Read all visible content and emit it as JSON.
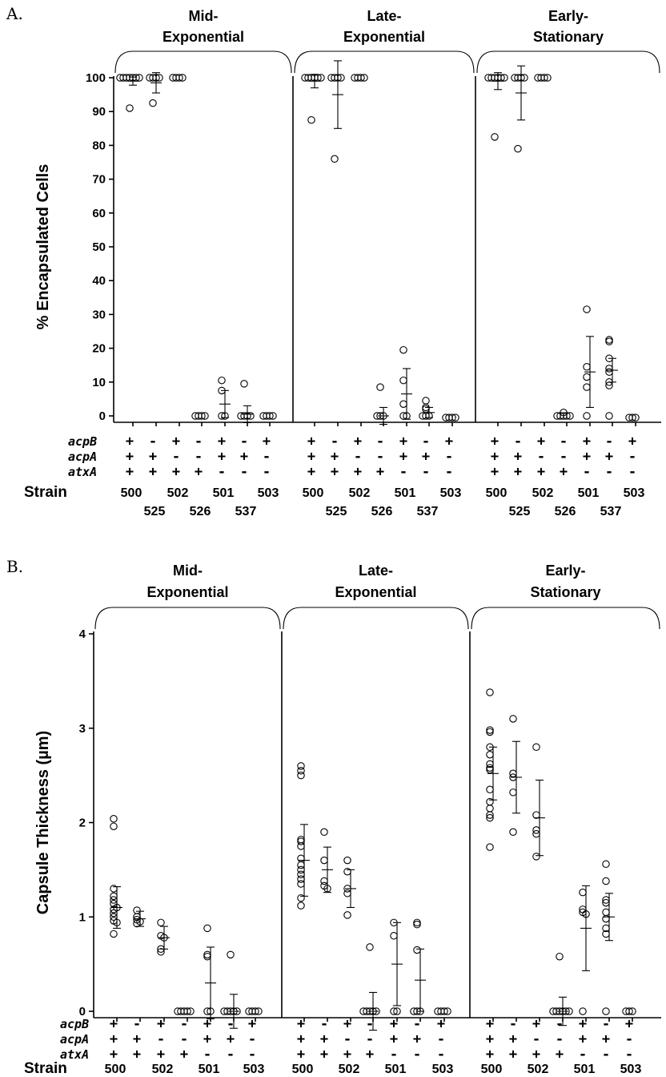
{
  "chart_data": [
    {
      "type": "scatter",
      "panel_label": "A.",
      "ylabel": "% Encapsulated Cells",
      "ylim": [
        0,
        100
      ],
      "yticks": [
        0,
        10,
        20,
        30,
        40,
        50,
        60,
        70,
        80,
        90,
        100
      ],
      "phases": [
        {
          "line1": "Mid-",
          "line2": "Exponential"
        },
        {
          "line1": "Late-",
          "line2": "Exponential"
        },
        {
          "line1": "Early-",
          "line2": "Stationary"
        }
      ],
      "genes": [
        "acpB",
        "acpA",
        "atxA"
      ],
      "strain_label": "Strain",
      "strains": [
        "500",
        "525",
        "502",
        "526",
        "501",
        "537",
        "503"
      ],
      "genotypes": {
        "acpB": [
          "+",
          "-",
          "+",
          "-",
          "+",
          "-",
          "+"
        ],
        "acpA": [
          "+",
          "+",
          "-",
          "-",
          "+",
          "+",
          "-"
        ],
        "atxA": [
          "+",
          "+",
          "+",
          "+",
          "-",
          "-",
          "-"
        ]
      },
      "series": [
        {
          "phase": "Mid-Exponential",
          "groups": [
            {
              "points": [
                100,
                100,
                100,
                100,
                100,
                100,
                100,
                91
              ],
              "mean": 99,
              "err": 1.2
            },
            {
              "points": [
                100,
                100,
                100,
                100,
                92.5
              ],
              "mean": 98.5,
              "err": 3
            },
            {
              "points": [
                100,
                100,
                100,
                100
              ],
              "mean": 100,
              "err": 0
            },
            {
              "points": [
                0,
                0,
                0,
                0
              ],
              "mean": 0,
              "err": 0
            },
            {
              "points": [
                10.5,
                7.5,
                0,
                0
              ],
              "mean": 3.5,
              "err": 4
            },
            {
              "points": [
                9.5,
                0,
                0,
                0,
                0
              ],
              "mean": 0.5,
              "err": 2.5
            },
            {
              "points": [
                0,
                0,
                0,
                0
              ],
              "mean": 0,
              "err": 0
            }
          ]
        },
        {
          "phase": "Late-Exponential",
          "groups": [
            {
              "points": [
                100,
                100,
                100,
                100,
                100,
                100,
                87.5
              ],
              "mean": 99,
              "err": 2
            },
            {
              "points": [
                100,
                100,
                100,
                100,
                76
              ],
              "mean": 95,
              "err": 10
            },
            {
              "points": [
                100,
                100,
                100,
                100
              ],
              "mean": 100,
              "err": 0
            },
            {
              "points": [
                8.5,
                0,
                0,
                0
              ],
              "mean": 0,
              "err": 2.5
            },
            {
              "points": [
                19.5,
                10.5,
                3.5,
                0,
                0
              ],
              "mean": 6.5,
              "err": 7.5
            },
            {
              "points": [
                4.5,
                2.5,
                2,
                0,
                0,
                0
              ],
              "mean": 1,
              "err": 1.5
            },
            {
              "points": [
                -0.5,
                -0.5,
                -0.5,
                -0.5
              ],
              "mean": -0.5,
              "err": 0
            }
          ]
        },
        {
          "phase": "Early-Stationary",
          "groups": [
            {
              "points": [
                100,
                100,
                100,
                100,
                100,
                100,
                82.5
              ],
              "mean": 99,
              "err": 2.5
            },
            {
              "points": [
                100,
                100,
                100,
                100,
                79
              ],
              "mean": 95.5,
              "err": 8
            },
            {
              "points": [
                100,
                100,
                100,
                100
              ],
              "mean": 100,
              "err": 0
            },
            {
              "points": [
                1,
                0,
                0,
                0,
                0,
                0
              ],
              "mean": 0,
              "err": 0
            },
            {
              "points": [
                31.5,
                14.5,
                11.5,
                8.5,
                0
              ],
              "mean": 13,
              "err": 10.5
            },
            {
              "points": [
                22.5,
                22,
                17,
                14,
                13,
                10,
                9,
                0
              ],
              "mean": 13.5,
              "err": 3.5
            },
            {
              "points": [
                -0.5,
                -0.5,
                -0.5
              ],
              "mean": -0.5,
              "err": 0
            }
          ]
        }
      ]
    },
    {
      "type": "scatter",
      "panel_label": "B.",
      "ylabel": "Capsule Thickness (µm)",
      "ylim": [
        0,
        4
      ],
      "yticks": [
        0,
        1,
        2,
        3,
        4
      ],
      "phases": [
        {
          "line1": "Mid-",
          "line2": "Exponential"
        },
        {
          "line1": "Late-",
          "line2": "Exponential"
        },
        {
          "line1": "Early-",
          "line2": "Stationary"
        }
      ],
      "genes": [
        "acpB",
        "acpA",
        "atxA"
      ],
      "strain_label": "Strain",
      "strains": [
        "500",
        "525",
        "502",
        "526",
        "501",
        "537",
        "503"
      ],
      "genotypes": {
        "acpB": [
          "+",
          "-",
          "+",
          "-",
          "+",
          "-",
          "+"
        ],
        "acpA": [
          "+",
          "+",
          "-",
          "-",
          "+",
          "+",
          "-"
        ],
        "atxA": [
          "+",
          "+",
          "+",
          "+",
          "-",
          "-",
          "-"
        ]
      },
      "series": [
        {
          "phase": "Mid-Exponential",
          "groups": [
            {
              "points": [
                2.04,
                1.96,
                1.3,
                1.22,
                1.18,
                1.14,
                1.1,
                1.08,
                1.04,
                1.0,
                0.96,
                0.94,
                0.82
              ],
              "mean": 1.1,
              "err": 0.22
            },
            {
              "points": [
                1.07,
                1.0,
                0.97,
                0.95,
                0.93
              ],
              "mean": 0.98,
              "err": 0.08
            },
            {
              "points": [
                0.94,
                0.8,
                0.78,
                0.66,
                0.63
              ],
              "mean": 0.78,
              "err": 0.12
            },
            {
              "points": [
                0,
                0,
                0,
                0,
                0
              ],
              "mean": 0,
              "err": 0
            },
            {
              "points": [
                0.88,
                0.6,
                0.58,
                0,
                0
              ],
              "mean": 0.3,
              "err": 0.38
            },
            {
              "points": [
                0.6,
                0,
                0,
                0,
                0,
                0
              ],
              "mean": 0,
              "err": 0.18
            },
            {
              "points": [
                0,
                0,
                0,
                0
              ],
              "mean": 0,
              "err": 0
            }
          ]
        },
        {
          "phase": "Late-Exponential",
          "groups": [
            {
              "points": [
                2.6,
                2.55,
                2.5,
                1.82,
                1.8,
                1.75,
                1.62,
                1.55,
                1.5,
                1.45,
                1.4,
                1.35,
                1.2,
                1.12
              ],
              "mean": 1.6,
              "err": 0.38
            },
            {
              "points": [
                1.9,
                1.6,
                1.38,
                1.33,
                1.3
              ],
              "mean": 1.5,
              "err": 0.24
            },
            {
              "points": [
                1.6,
                1.48,
                1.3,
                1.25,
                1.02
              ],
              "mean": 1.3,
              "err": 0.2
            },
            {
              "points": [
                0.68,
                0,
                0,
                0,
                0,
                0
              ],
              "mean": 0,
              "err": 0.2
            },
            {
              "points": [
                0.94,
                0.8,
                0,
                0
              ],
              "mean": 0.5,
              "err": 0.44
            },
            {
              "points": [
                0.94,
                0.92,
                0.65,
                0,
                0,
                0
              ],
              "mean": 0.33,
              "err": 0.33
            },
            {
              "points": [
                0,
                0,
                0,
                0
              ],
              "mean": 0,
              "err": 0
            }
          ]
        },
        {
          "phase": "Early-Stationary",
          "groups": [
            {
              "points": [
                3.38,
                2.98,
                2.96,
                2.8,
                2.72,
                2.62,
                2.58,
                2.56,
                2.35,
                2.22,
                2.15,
                2.08,
                2.05,
                1.74
              ],
              "mean": 2.52,
              "err": 0.28
            },
            {
              "points": [
                3.1,
                2.52,
                2.48,
                2.32,
                1.9
              ],
              "mean": 2.48,
              "err": 0.38
            },
            {
              "points": [
                2.8,
                2.08,
                1.92,
                1.88,
                1.64
              ],
              "mean": 2.05,
              "err": 0.4
            },
            {
              "points": [
                0.58,
                0,
                0,
                0,
                0,
                0,
                0
              ],
              "mean": 0,
              "err": 0.15
            },
            {
              "points": [
                1.26,
                1.08,
                1.05,
                1.03,
                0
              ],
              "mean": 0.88,
              "err": 0.45
            },
            {
              "points": [
                1.56,
                1.38,
                1.18,
                1.15,
                1.05,
                0.98,
                0.88,
                0.82,
                0
              ],
              "mean": 1.0,
              "err": 0.25
            },
            {
              "points": [
                0,
                0,
                0
              ],
              "mean": 0,
              "err": 0
            }
          ]
        }
      ]
    }
  ]
}
